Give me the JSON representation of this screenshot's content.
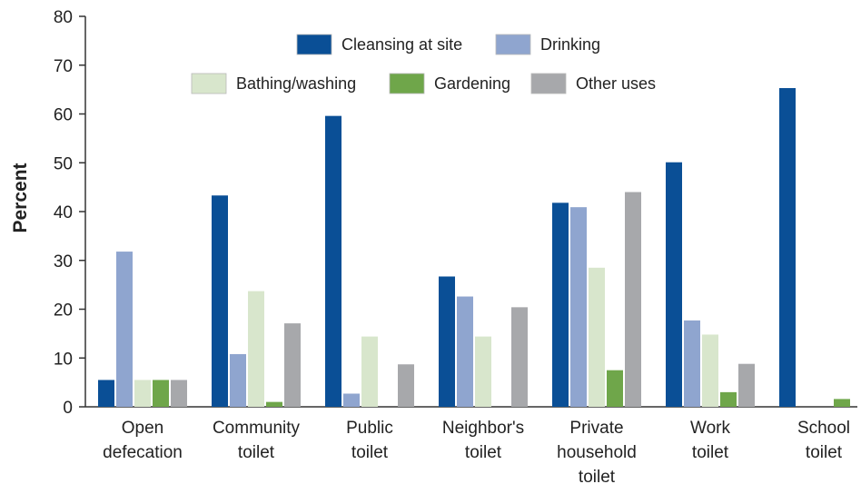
{
  "chart_data": {
    "type": "bar",
    "title": "",
    "xlabel": "",
    "ylabel": "Percent",
    "ylim": [
      0,
      80
    ],
    "yticks": [
      "0",
      "10",
      "20",
      "30",
      "40",
      "50",
      "60",
      "70",
      "80"
    ],
    "grid": false,
    "legend_position": "top",
    "categories": [
      [
        "Open",
        "defecation"
      ],
      [
        "Community",
        "toilet"
      ],
      [
        "Public",
        "toilet"
      ],
      [
        "Neighbor's",
        "toilet"
      ],
      [
        "Private",
        "household",
        "toilet"
      ],
      [
        "Work",
        "toilet"
      ],
      [
        "School",
        "toilet"
      ]
    ],
    "series": [
      {
        "name": "Cleansing at site",
        "color": "#0a4f96",
        "values": [
          5.5,
          43.3,
          59.6,
          26.7,
          41.8,
          50.1,
          65.3
        ]
      },
      {
        "name": "Drinking",
        "color": "#8fa5cf",
        "values": [
          31.8,
          10.8,
          2.7,
          22.6,
          40.9,
          17.7,
          0
        ]
      },
      {
        "name": "Bathing/washing",
        "color": "#d8e6cc",
        "values": [
          5.5,
          23.7,
          14.4,
          14.4,
          28.5,
          14.8,
          0
        ]
      },
      {
        "name": "Gardening",
        "color": "#6fa64a",
        "values": [
          5.5,
          1.0,
          0,
          0,
          7.5,
          3.0,
          1.6
        ]
      },
      {
        "name": "Other uses",
        "color": "#a7a8ab",
        "values": [
          5.5,
          17.1,
          8.7,
          20.4,
          44.0,
          8.8,
          0
        ]
      }
    ]
  }
}
